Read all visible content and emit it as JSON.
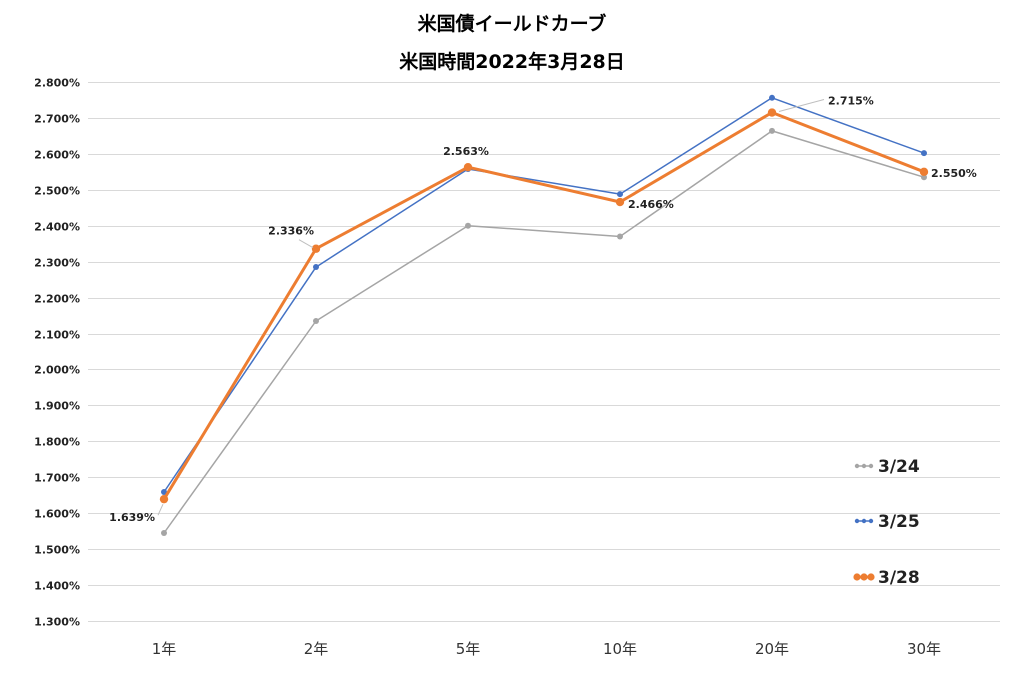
{
  "chart_data": {
    "type": "line",
    "title": "米国債イールドカーブ",
    "subtitle": "米国時間2022年3月28日",
    "categories": [
      "1年",
      "2年",
      "5年",
      "10年",
      "20年",
      "30年"
    ],
    "ylim": [
      1.3,
      2.8
    ],
    "yticks": [
      1.3,
      1.4,
      1.5,
      1.6,
      1.7,
      1.8,
      1.9,
      2.0,
      2.1,
      2.2,
      2.3,
      2.4,
      2.5,
      2.6,
      2.7,
      2.8
    ],
    "ytick_labels": [
      "1.300%",
      "1.400%",
      "1.500%",
      "1.600%",
      "1.700%",
      "1.800%",
      "1.900%",
      "2.000%",
      "2.100%",
      "2.200%",
      "2.300%",
      "2.400%",
      "2.500%",
      "2.600%",
      "2.700%",
      "2.800%"
    ],
    "grid": true,
    "legend": "bottom-right",
    "series": [
      {
        "name": "3/24",
        "color": "#A5A5A5",
        "values": [
          1.545,
          2.135,
          2.4,
          2.37,
          2.664,
          2.535
        ]
      },
      {
        "name": "3/25",
        "color": "#4472C4",
        "values": [
          1.659,
          2.285,
          2.558,
          2.488,
          2.756,
          2.602
        ]
      },
      {
        "name": "3/28",
        "color": "#ED7D31",
        "values": [
          1.639,
          2.336,
          2.563,
          2.466,
          2.715,
          2.55
        ],
        "data_labels": [
          "1.639%",
          "2.336%",
          "2.563%",
          "2.466%",
          "2.715%",
          "2.550%"
        ]
      }
    ]
  }
}
